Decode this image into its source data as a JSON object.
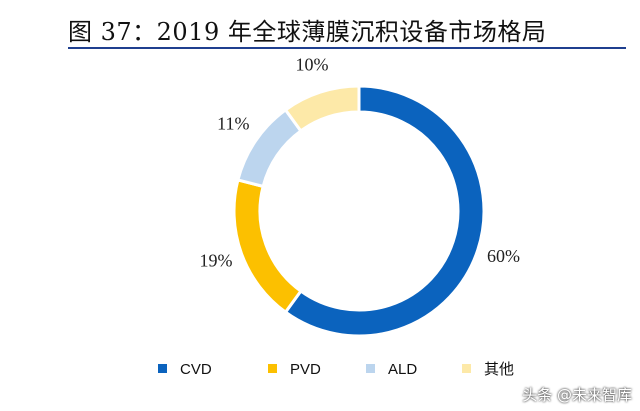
{
  "title": "图 37：2019 年全球薄膜沉积设备市场格局",
  "chart_data": {
    "type": "pie",
    "donut": true,
    "categories": [
      "CVD",
      "PVD",
      "ALD",
      "其他"
    ],
    "values": [
      60,
      19,
      11,
      10
    ],
    "labels": [
      "60%",
      "19%",
      "11%",
      "10%"
    ],
    "colors": [
      "#0b63be",
      "#fcc000",
      "#bcd5ee",
      "#fde9a8"
    ],
    "legend": "bottom"
  },
  "watermark": "头条 @未来智库"
}
